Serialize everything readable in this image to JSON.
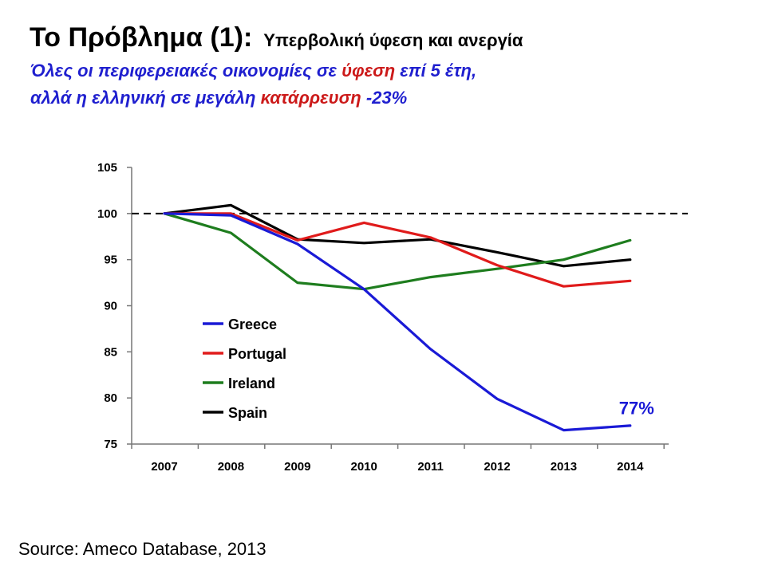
{
  "header": {
    "title": "Το Πρόβλημα (1):",
    "title_sub": "Υπερβολική ύφεση και ανεργία",
    "line1_a": "Όλες οι περιφερειακές οικονομίες σε ",
    "line1_b": "ύφεση",
    "line1_c": " επί 5 έτη,",
    "line2_a": "αλλά η ελληνική σε μεγάλη ",
    "line2_b": "κατάρρευση",
    "line2_c": " -23%"
  },
  "source": "Source: Ameco Database, 2013",
  "colors": {
    "subtitle_blue": "#1f1fcf",
    "subtitle_red": "#cc1a1a",
    "greece": "#1a1ad6",
    "portugal": "#e01b1b",
    "ireland": "#1e7d1e",
    "spain": "#000000"
  },
  "chart_data": {
    "type": "line",
    "x": [
      "2007",
      "2008",
      "2009",
      "2010",
      "2011",
      "2012",
      "2013",
      "2014"
    ],
    "ylim": [
      75,
      105
    ],
    "yticks": [
      75,
      80,
      85,
      90,
      95,
      100,
      105
    ],
    "reference_line": {
      "y": 100,
      "style": "dashed"
    },
    "series": [
      {
        "name": "Greece",
        "color": "#1a1ad6",
        "values": [
          100,
          99.8,
          96.7,
          91.8,
          85.3,
          79.9,
          76.5,
          77.0
        ]
      },
      {
        "name": "Portugal",
        "color": "#e01b1b",
        "values": [
          100,
          100.0,
          97.1,
          99.0,
          97.4,
          94.4,
          92.1,
          92.7
        ]
      },
      {
        "name": "Ireland",
        "color": "#1e7d1e",
        "values": [
          100,
          97.9,
          92.5,
          91.8,
          93.1,
          94.0,
          95.0,
          97.1
        ]
      },
      {
        "name": "Spain",
        "color": "#000000",
        "values": [
          100,
          100.9,
          97.2,
          96.8,
          97.2,
          95.8,
          94.3,
          95.0
        ]
      }
    ],
    "legend_position": "bottom-left inside plot",
    "annotations": [
      {
        "text": "77%",
        "x": "2014",
        "y": 78.5,
        "color": "#1a1ad6"
      }
    ]
  }
}
